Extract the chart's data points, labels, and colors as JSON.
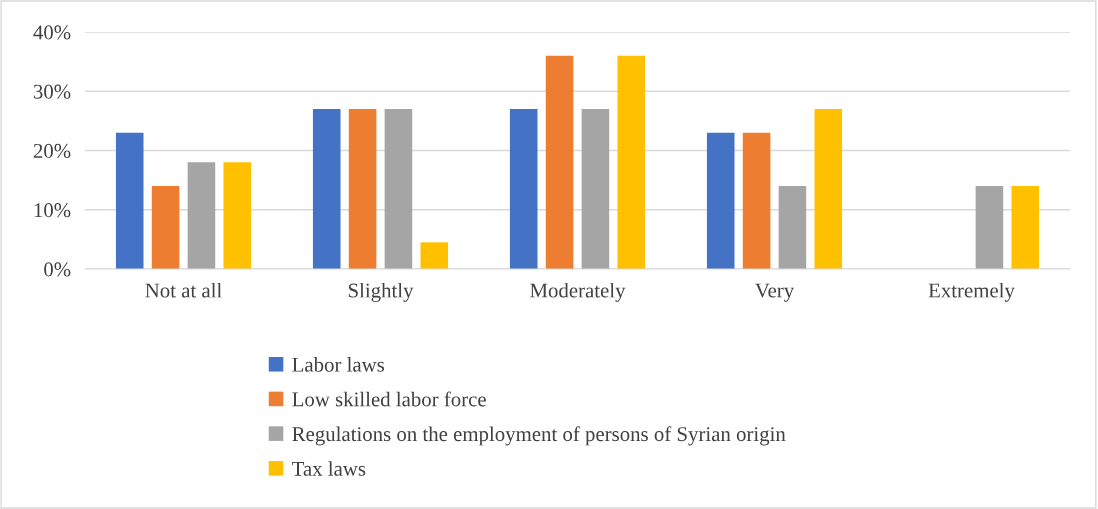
{
  "chart_data": {
    "type": "bar",
    "categories": [
      "Not at all",
      "Slightly",
      "Moderately",
      "Very",
      "Extremely"
    ],
    "series": [
      {
        "name": "Labor laws",
        "color": "#4472c4",
        "values": [
          23,
          27,
          27,
          23,
          0
        ]
      },
      {
        "name": "Low skilled labor force",
        "color": "#ed7d31",
        "values": [
          14,
          27,
          36,
          23,
          0
        ]
      },
      {
        "name": "Regulations on the employment of persons of Syrian origin",
        "color": "#a5a5a5",
        "values": [
          18,
          27,
          27,
          14,
          14
        ]
      },
      {
        "name": "Tax laws",
        "color": "#ffc000",
        "values": [
          18,
          4.5,
          36,
          27,
          14
        ]
      }
    ],
    "ylim": [
      0,
      40
    ],
    "yticks": [
      {
        "value": 0,
        "label": "0%"
      },
      {
        "value": 10,
        "label": "10%"
      },
      {
        "value": 20,
        "label": "20%"
      },
      {
        "value": 30,
        "label": "30%"
      },
      {
        "value": 40,
        "label": "40%"
      }
    ],
    "grid": "y",
    "legend": "bottom"
  }
}
